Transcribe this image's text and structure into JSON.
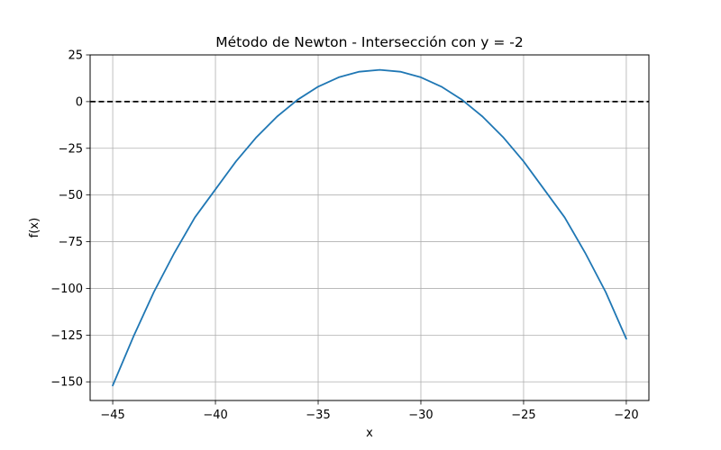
{
  "chart_data": {
    "type": "line",
    "title": "Método de Newton - Intersección con y = -2",
    "xlabel": "x",
    "ylabel": "f(x)",
    "xlim": [
      -46.1,
      -18.9
    ],
    "ylim": [
      -160,
      25
    ],
    "xticks": [
      -45,
      -40,
      -35,
      -30,
      -25,
      -20
    ],
    "yticks": [
      25,
      0,
      -25,
      -50,
      -75,
      -100,
      -125,
      -150
    ],
    "xtick_labels": [
      "−45",
      "−40",
      "−35",
      "−30",
      "−25",
      "−20"
    ],
    "ytick_labels": [
      "25",
      "0",
      "−25",
      "−50",
      "−75",
      "−100",
      "−125",
      "−150"
    ],
    "grid": true,
    "series": [
      {
        "color": "#1f77b4",
        "x": [
          -45,
          -44,
          -43,
          -42,
          -41,
          -40,
          -39,
          -38,
          -37,
          -36,
          -35,
          -34,
          -33,
          -32,
          -31,
          -30,
          -29,
          -28,
          -27,
          -26,
          -25,
          -24,
          -23,
          -22,
          -21,
          -20
        ],
        "y": [
          -152,
          -126,
          -102,
          -81,
          -62,
          -47,
          -32,
          -19,
          -8,
          1,
          8,
          13,
          16,
          17,
          16,
          13,
          8,
          1,
          -8,
          -19,
          -32,
          -47,
          -62,
          -81,
          -102,
          -127
        ]
      }
    ],
    "reference_line": {
      "y": 0,
      "style": "dashed",
      "color": "#000000"
    }
  }
}
